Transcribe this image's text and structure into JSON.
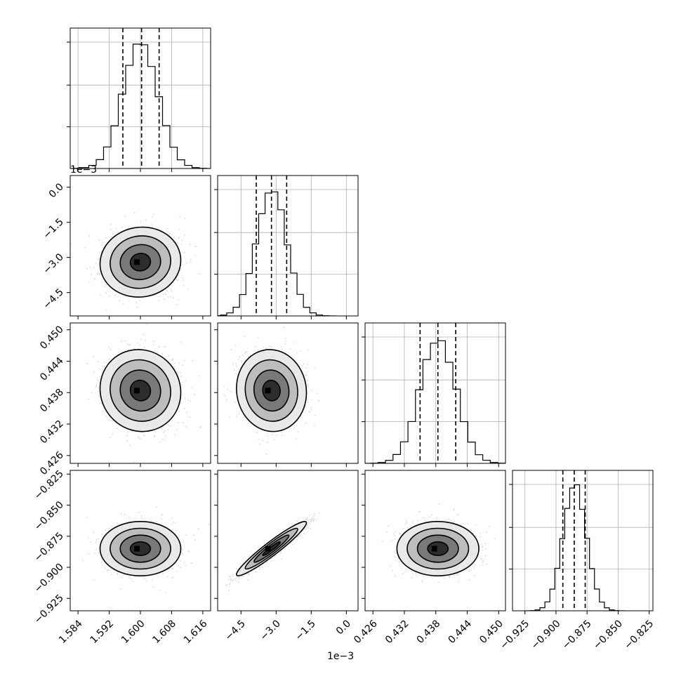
{
  "chart_data": {
    "type": "corner",
    "grid": true,
    "parameters": [
      {
        "range": [
          1.582,
          1.618
        ],
        "mean": 1.6,
        "std": 0.0045,
        "quantiles": [
          1.5955,
          1.6003,
          1.6048
        ],
        "ticks": [
          1.584,
          1.592,
          1.6,
          1.608,
          1.616
        ],
        "tick_labels": [
          "1.584",
          "1.592",
          "1.600",
          "1.608",
          "1.616"
        ]
      },
      {
        "range": [
          -5.5,
          0.5
        ],
        "mean": -3.2,
        "std": 0.65,
        "quantiles": [
          -3.85,
          -3.2,
          -2.55
        ],
        "ticks": [
          -4.5,
          -3.0,
          -1.5,
          0.0
        ],
        "tick_labels": [
          "−4.5",
          "−3.0",
          "−1.5",
          "0.0"
        ],
        "offset_text": "1e−3"
      },
      {
        "range": [
          0.4245,
          0.4513
        ],
        "mean": 0.4384,
        "std": 0.0034,
        "quantiles": [
          0.435,
          0.4384,
          0.4418
        ],
        "ticks": [
          0.426,
          0.432,
          0.438,
          0.444,
          0.45
        ],
        "tick_labels": [
          "0.426",
          "0.432",
          "0.438",
          "0.444",
          "0.450"
        ]
      },
      {
        "range": [
          -0.935,
          -0.822
        ],
        "mean": -0.885,
        "std": 0.0095,
        "quantiles": [
          -0.8945,
          -0.8853,
          -0.8765
        ],
        "ticks": [
          -0.925,
          -0.9,
          -0.875,
          -0.85,
          -0.825
        ],
        "tick_labels": [
          "−0.925",
          "−0.900",
          "−0.875",
          "−0.850",
          "−0.825"
        ]
      }
    ],
    "correlations": {
      "1-0": 0.05,
      "2-0": -0.05,
      "2-1": -0.05,
      "3-0": 0.0,
      "3-1": 0.95,
      "3-2": 0.0
    },
    "contour_levels_sigma": [
      0.5,
      1.0,
      1.5,
      2.0
    ]
  }
}
